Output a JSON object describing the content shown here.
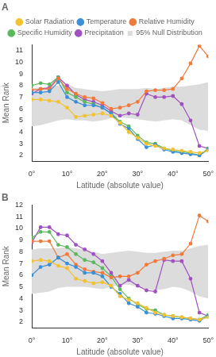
{
  "chart_data": [
    {
      "type": "line",
      "title": "A",
      "x_label": "Latitude (absolute value)",
      "y_label": "Mean Rank",
      "x": [
        0,
        2.5,
        5,
        7.5,
        10,
        12.5,
        15,
        17.5,
        20,
        22.5,
        25,
        27.5,
        30,
        32.5,
        35,
        37.5,
        40,
        42.5,
        45,
        47.5,
        50
      ],
      "xlim": [
        0,
        50
      ],
      "xticks": [
        {
          "value": 0,
          "label": "0°"
        },
        {
          "value": 10,
          "label": "10°"
        },
        {
          "value": 20,
          "label": "20°"
        },
        {
          "value": 30,
          "label": "30°"
        },
        {
          "value": 40,
          "label": "40°"
        },
        {
          "value": 50,
          "label": "50°"
        }
      ],
      "ylim": [
        1.5,
        11.5
      ],
      "yticks": [
        2,
        3,
        4,
        5,
        6,
        7,
        8,
        9,
        10,
        11
      ],
      "grid": false,
      "legend": "top",
      "series": [
        {
          "name": "95% Null Distribution",
          "type": "area",
          "color": "#dcdcdc",
          "lower": [
            4.5,
            4.6,
            4.8,
            5.0,
            5.1,
            5.0,
            5.0,
            4.9,
            5.0,
            5.2,
            5.3,
            5.2,
            5.1,
            5.0,
            4.9,
            5.0,
            5.1,
            5.0,
            4.6,
            4.2,
            4.1
          ],
          "upper": [
            7.8,
            7.8,
            7.9,
            8.0,
            8.1,
            7.8,
            7.7,
            7.6,
            7.5,
            7.6,
            7.7,
            7.7,
            7.7,
            7.8,
            7.7,
            7.8,
            7.9,
            7.9,
            8.0,
            8.1,
            8.3
          ]
        },
        {
          "name": "Solar Radiation",
          "color": "#f2c230",
          "marker": "circle",
          "line_style": "solid",
          "values": [
            6.8,
            6.8,
            6.7,
            6.6,
            6.1,
            5.3,
            5.4,
            5.5,
            5.6,
            5.4,
            4.8,
            4.0,
            3.5,
            3.0,
            2.8,
            2.6,
            2.5,
            2.4,
            2.3,
            2.2,
            2.4
          ]
        },
        {
          "name": "Temperature",
          "color": "#3a8fd6",
          "marker": "circle",
          "line_style": "solid",
          "values": [
            7.4,
            7.4,
            7.5,
            8.3,
            7.0,
            6.6,
            6.3,
            6.3,
            6.1,
            5.6,
            4.7,
            4.3,
            3.4,
            2.7,
            2.9,
            2.5,
            2.3,
            2.2,
            2.1,
            2.0,
            2.5
          ]
        },
        {
          "name": "Relative Humidity",
          "color": "#f07a3a",
          "marker": "circle",
          "line_style": "solid",
          "values": [
            7.6,
            7.7,
            7.7,
            8.6,
            7.7,
            7.3,
            7.0,
            6.9,
            6.5,
            6.0,
            6.1,
            6.3,
            6.6,
            7.5,
            7.6,
            7.6,
            7.7,
            8.6,
            9.9,
            11.4,
            10.5
          ]
        },
        {
          "name": "Specific Humidity",
          "color": "#5cb85c",
          "marker": "circle",
          "line_style": "solid",
          "values": [
            8.0,
            8.2,
            8.1,
            8.7,
            7.4,
            7.0,
            6.6,
            6.4,
            6.1,
            5.6,
            4.9,
            4.5,
            3.7,
            3.1,
            3.0,
            2.6,
            2.4,
            2.3,
            2.2,
            2.0,
            2.6
          ]
        },
        {
          "name": "Precipitation",
          "color": "#a050c0",
          "marker": "circle",
          "line_style": "solid",
          "values": [
            7.3,
            7.7,
            7.8,
            8.7,
            8.0,
            7.2,
            6.8,
            6.6,
            6.3,
            5.8,
            5.4,
            5.6,
            5.5,
            7.3,
            7.0,
            7.0,
            7.1,
            6.4,
            5.0,
            2.8,
            2.6
          ]
        }
      ]
    },
    {
      "type": "line",
      "title": "B",
      "x_label": "Latitude (absolute value)",
      "y_label": "Mean Rank",
      "x": [
        0,
        2.5,
        5,
        7.5,
        10,
        12.5,
        15,
        17.5,
        20,
        22.5,
        25,
        27.5,
        30,
        32.5,
        35,
        37.5,
        40,
        42.5,
        45,
        47.5,
        50
      ],
      "xlim": [
        0,
        50
      ],
      "xticks": [
        {
          "value": 0,
          "label": "0°"
        },
        {
          "value": 10,
          "label": "10°"
        },
        {
          "value": 20,
          "label": "20°"
        },
        {
          "value": 30,
          "label": "30°"
        },
        {
          "value": 40,
          "label": "40°"
        },
        {
          "value": 50,
          "label": "50°"
        }
      ],
      "ylim": [
        1.5,
        12
      ],
      "yticks": [
        2,
        3,
        4,
        5,
        6,
        7,
        8,
        9,
        10,
        11,
        12
      ],
      "grid": false,
      "series": [
        {
          "name": "95% Null Distribution",
          "type": "area",
          "color": "#dcdcdc",
          "lower": [
            4.4,
            4.5,
            4.6,
            4.9,
            5.0,
            5.0,
            5.0,
            4.9,
            4.8,
            5.0,
            5.2,
            5.2,
            5.0,
            4.8,
            4.7,
            4.8,
            5.0,
            4.9,
            4.6,
            4.2,
            4.0
          ],
          "upper": [
            8.2,
            8.3,
            8.3,
            8.3,
            8.4,
            8.3,
            8.2,
            8.0,
            7.8,
            7.9,
            8.0,
            8.1,
            8.0,
            7.9,
            7.9,
            8.0,
            8.1,
            8.1,
            8.3,
            8.5,
            8.6
          ]
        },
        {
          "name": "Solar Radiation",
          "color": "#f2c230",
          "marker": "circle",
          "line_style": "solid",
          "values": [
            7.2,
            7.3,
            7.2,
            6.8,
            6.6,
            5.7,
            5.5,
            5.3,
            5.4,
            5.1,
            4.2,
            3.9,
            3.6,
            3.2,
            2.8,
            2.6,
            2.5,
            2.4,
            2.3,
            2.2,
            2.4
          ]
        },
        {
          "name": "Temperature",
          "color": "#3a8fd6",
          "marker": "circle",
          "line_style": "solid",
          "values": [
            6.0,
            6.7,
            6.9,
            7.5,
            7.0,
            6.7,
            6.2,
            6.2,
            5.9,
            5.0,
            4.4,
            3.6,
            3.3,
            2.8,
            2.7,
            2.5,
            2.3,
            2.3,
            2.2,
            2.1,
            2.5
          ]
        },
        {
          "name": "Relative Humidity",
          "color": "#f07a3a",
          "marker": "circle",
          "line_style": "solid",
          "values": [
            8.9,
            8.9,
            8.9,
            7.5,
            7.8,
            6.9,
            6.5,
            6.3,
            6.2,
            5.8,
            5.9,
            5.9,
            6.2,
            6.9,
            7.2,
            7.4,
            7.7,
            7.8,
            8.7,
            11.1,
            10.6
          ]
        },
        {
          "name": "Specific Humidity",
          "color": "#5cb85c",
          "marker": "circle",
          "line_style": "solid",
          "values": [
            9.2,
            9.7,
            9.7,
            8.6,
            8.4,
            7.8,
            7.3,
            7.1,
            6.6,
            5.9,
            4.8,
            4.0,
            3.5,
            3.1,
            3.0,
            2.6,
            2.5,
            2.4,
            2.3,
            2.2,
            2.6
          ]
        },
        {
          "name": "Precipitation",
          "color": "#a050c0",
          "marker": "circle",
          "line_style": "solid",
          "values": [
            8.8,
            10.1,
            10.1,
            9.5,
            9.4,
            8.6,
            8.2,
            7.8,
            7.2,
            6.2,
            5.1,
            5.6,
            5.1,
            4.7,
            4.6,
            7.3,
            7.2,
            7.2,
            5.7,
            2.8,
            2.5
          ]
        }
      ]
    }
  ]
}
